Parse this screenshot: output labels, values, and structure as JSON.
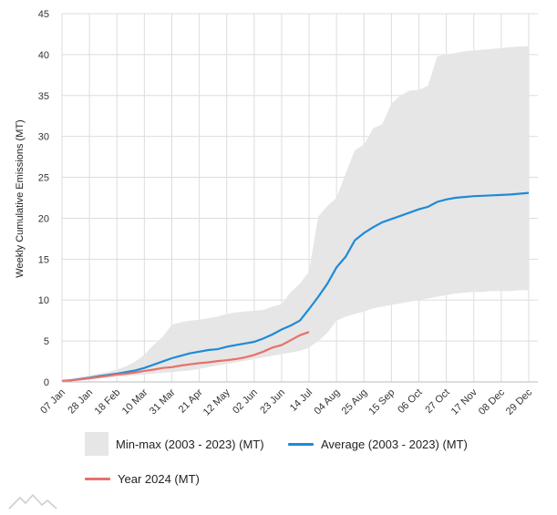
{
  "colors": {
    "band": "#e6e6e6",
    "average": "#1f8ad6",
    "year2024": "#e8706a",
    "grid": "#dddddd",
    "axis": "#bbbbbb"
  },
  "chart_data": {
    "type": "area",
    "title": "",
    "xlabel": "",
    "ylabel": "Weekly Cumulative Emissions (MT)",
    "ylim": [
      0,
      45
    ],
    "yticks": [
      0,
      5,
      10,
      15,
      20,
      25,
      30,
      35,
      40,
      45
    ],
    "grid": true,
    "legend_position": "bottom",
    "x_week_range": [
      1,
      53
    ],
    "x_ticks": [
      {
        "week": 1,
        "label": "07 Jan"
      },
      {
        "week": 4,
        "label": "28 Jan"
      },
      {
        "week": 7,
        "label": "18 Feb"
      },
      {
        "week": 10,
        "label": "10 Mar"
      },
      {
        "week": 13,
        "label": "31 Mar"
      },
      {
        "week": 16,
        "label": "21 Apr"
      },
      {
        "week": 19,
        "label": "12 May"
      },
      {
        "week": 22,
        "label": "02 Jun"
      },
      {
        "week": 25,
        "label": "23 Jun"
      },
      {
        "week": 28,
        "label": "14 Jul"
      },
      {
        "week": 31,
        "label": "04 Aug"
      },
      {
        "week": 34,
        "label": "25 Aug"
      },
      {
        "week": 37,
        "label": "15 Sep"
      },
      {
        "week": 40,
        "label": "06 Oct"
      },
      {
        "week": 43,
        "label": "27 Oct"
      },
      {
        "week": 46,
        "label": "17 Nov"
      },
      {
        "week": 49,
        "label": "08 Dec"
      },
      {
        "week": 52,
        "label": "29 Dec"
      }
    ],
    "series": [
      {
        "name": "Min-max (2003 - 2023) (MT)",
        "kind": "band",
        "x": [
          1,
          2,
          3,
          4,
          5,
          6,
          7,
          8,
          9,
          10,
          11,
          12,
          13,
          14,
          15,
          16,
          17,
          18,
          19,
          20,
          21,
          22,
          23,
          24,
          25,
          26,
          27,
          28,
          29,
          30,
          31,
          32,
          33,
          34,
          35,
          36,
          37,
          38,
          39,
          40,
          41,
          42,
          43,
          44,
          45,
          46,
          47,
          48,
          49,
          50,
          51,
          52
        ],
        "upper": [
          0.3,
          0.4,
          0.6,
          0.8,
          1.0,
          1.2,
          1.5,
          1.9,
          2.5,
          3.3,
          4.5,
          5.5,
          7.0,
          7.3,
          7.5,
          7.6,
          7.8,
          8.0,
          8.3,
          8.5,
          8.6,
          8.7,
          8.8,
          9.2,
          9.5,
          11.0,
          12.0,
          13.5,
          20.2,
          21.5,
          22.5,
          25.5,
          28.3,
          29.0,
          31.0,
          31.5,
          34.0,
          35.0,
          35.6,
          35.7,
          36.2,
          39.8,
          40.0,
          40.2,
          40.4,
          40.5,
          40.6,
          40.7,
          40.8,
          40.9,
          41.0,
          41.0
        ],
        "lower": [
          0.0,
          0.1,
          0.2,
          0.3,
          0.4,
          0.5,
          0.6,
          0.7,
          0.8,
          0.9,
          1.0,
          1.1,
          1.2,
          1.3,
          1.4,
          1.6,
          1.8,
          2.0,
          2.2,
          2.4,
          2.6,
          2.8,
          3.0,
          3.2,
          3.4,
          3.6,
          3.8,
          4.2,
          5.0,
          6.0,
          7.5,
          8.0,
          8.3,
          8.6,
          9.0,
          9.2,
          9.4,
          9.6,
          9.8,
          10.0,
          10.2,
          10.4,
          10.6,
          10.8,
          10.9,
          11.0,
          11.0,
          11.1,
          11.1,
          11.1,
          11.2,
          11.2
        ]
      },
      {
        "name": "Average (2003 - 2023) (MT)",
        "kind": "line",
        "x": [
          1,
          2,
          3,
          4,
          5,
          6,
          7,
          8,
          9,
          10,
          11,
          12,
          13,
          14,
          15,
          16,
          17,
          18,
          19,
          20,
          21,
          22,
          23,
          24,
          25,
          26,
          27,
          28,
          29,
          30,
          31,
          32,
          33,
          34,
          35,
          36,
          37,
          38,
          39,
          40,
          41,
          42,
          43,
          44,
          45,
          46,
          47,
          48,
          49,
          50,
          51,
          52
        ],
        "values": [
          0.1,
          0.2,
          0.35,
          0.5,
          0.7,
          0.85,
          1.0,
          1.2,
          1.4,
          1.7,
          2.1,
          2.5,
          2.9,
          3.2,
          3.5,
          3.7,
          3.9,
          4.0,
          4.3,
          4.5,
          4.7,
          4.9,
          5.3,
          5.8,
          6.4,
          6.9,
          7.5,
          8.9,
          10.4,
          12.0,
          14.0,
          15.3,
          17.3,
          18.2,
          18.9,
          19.5,
          19.9,
          20.3,
          20.7,
          21.1,
          21.4,
          22.0,
          22.3,
          22.5,
          22.6,
          22.7,
          22.75,
          22.8,
          22.85,
          22.9,
          23.0,
          23.1
        ]
      },
      {
        "name": "Year 2024 (MT)",
        "kind": "line",
        "x": [
          1,
          2,
          3,
          4,
          5,
          6,
          7,
          8,
          9,
          10,
          11,
          12,
          13,
          14,
          15,
          16,
          17,
          18,
          19,
          20,
          21,
          22,
          23,
          24,
          25,
          26,
          27,
          28
        ],
        "values": [
          0.1,
          0.2,
          0.3,
          0.45,
          0.6,
          0.75,
          0.9,
          1.0,
          1.15,
          1.35,
          1.5,
          1.7,
          1.8,
          2.0,
          2.15,
          2.3,
          2.4,
          2.55,
          2.65,
          2.8,
          3.0,
          3.3,
          3.7,
          4.2,
          4.5,
          5.1,
          5.7,
          6.1
        ]
      }
    ]
  },
  "legend": {
    "band_label": "Min-max (2003 - 2023) (MT)",
    "average_label": "Average (2003 - 2023) (MT)",
    "year_label": "Year 2024 (MT)"
  },
  "footer": {
    "logo_icon": "mountain-logo-icon"
  }
}
